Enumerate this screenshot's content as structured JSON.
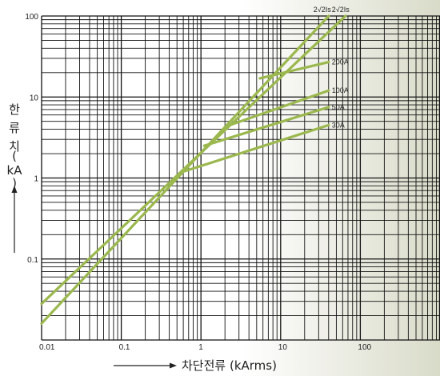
{
  "chart_data": {
    "type": "line",
    "xscale": "log",
    "yscale": "log",
    "xlim": [
      0.01,
      1000
    ],
    "ylim": [
      0.01,
      100
    ],
    "grid": true,
    "xticks": [
      {
        "value": 0.01,
        "label": "0.01"
      },
      {
        "value": 0.1,
        "label": "0.1"
      },
      {
        "value": 1,
        "label": "1"
      },
      {
        "value": 10,
        "label": "10"
      },
      {
        "value": 100,
        "label": "100"
      }
    ],
    "yticks": [
      {
        "value": 100,
        "label": "100"
      },
      {
        "value": 10,
        "label": "10"
      },
      {
        "value": 1,
        "label": "1"
      },
      {
        "value": 0.1,
        "label": "0.1"
      }
    ],
    "xlabel": "차단전류 (kArms)",
    "ylabel_chars": [
      "한",
      "류",
      "치",
      "(",
      "kA",
      ")"
    ],
    "line_color": "#9bb84e",
    "series": [
      {
        "name": "2√2Is",
        "x": [
          0.01,
          40
        ],
        "y": [
          0.016,
          100
        ]
      },
      {
        "name": "2√2Is",
        "x": [
          0.01,
          65
        ],
        "y": [
          0.028,
          100
        ]
      },
      {
        "name": "200A",
        "x": [
          5.5,
          40
        ],
        "y": [
          17,
          27
        ]
      },
      {
        "name": "100A",
        "x": [
          2.3,
          40
        ],
        "y": [
          4.5,
          12
        ]
      },
      {
        "name": "50A",
        "x": [
          1.1,
          40
        ],
        "y": [
          2.5,
          7.5
        ]
      },
      {
        "name": "30A",
        "x": [
          0.6,
          40
        ],
        "y": [
          1.2,
          4.5
        ]
      }
    ],
    "labels": [
      "2√2Is",
      "2√2Is",
      "200A",
      "100A",
      "50A",
      "30A"
    ]
  }
}
